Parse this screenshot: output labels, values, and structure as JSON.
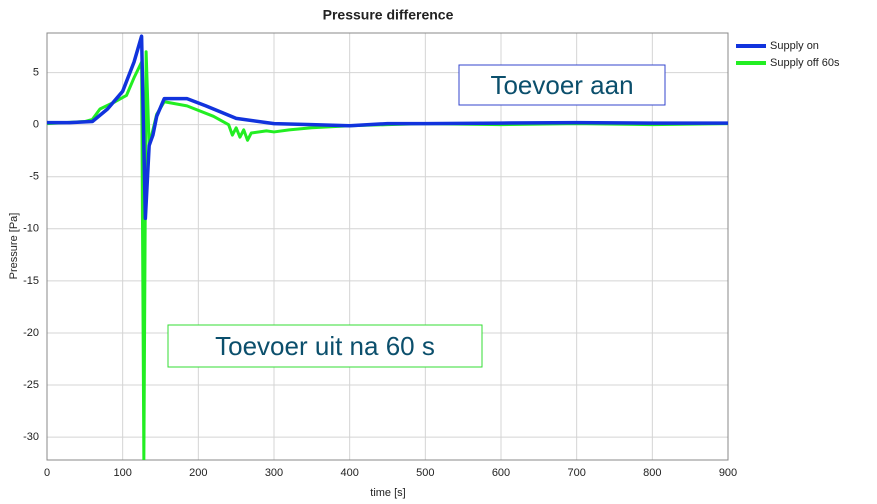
{
  "chart_data": {
    "type": "line",
    "title": "Pressure difference",
    "x_label": "time [s]",
    "y_label": "Pressure [Pa]",
    "xlim": [
      0,
      900
    ],
    "ylim": [
      -32.2,
      8.8
    ],
    "xticks": [
      0,
      100,
      200,
      300,
      400,
      500,
      600,
      700,
      800,
      900
    ],
    "yticks": [
      5,
      0,
      -5,
      -10,
      -15,
      -20,
      -25,
      -30
    ],
    "grid": true,
    "legend": "outside-top-right",
    "series": [
      {
        "name": "Supply on",
        "color": "#1133dd",
        "x": [
          0,
          30,
          60,
          80,
          100,
          115,
          125,
          130,
          135,
          140,
          145,
          155,
          185,
          210,
          250,
          300,
          350,
          400,
          450,
          500,
          600,
          700,
          800,
          900
        ],
        "values": [
          0.2,
          0.2,
          0.3,
          1.5,
          3.2,
          6,
          8.5,
          -9,
          -2,
          -1,
          0.8,
          2.5,
          2.5,
          1.8,
          0.6,
          0.1,
          0,
          -0.1,
          0.1,
          0.1,
          0.15,
          0.2,
          0.15,
          0.15
        ]
      },
      {
        "name": "Supply off 60s",
        "color": "#22ee22",
        "x": [
          0,
          50,
          60,
          70,
          90,
          105,
          115,
          125,
          128,
          131,
          135,
          145,
          155,
          185,
          220,
          240,
          245,
          250,
          255,
          260,
          265,
          270,
          290,
          300,
          320,
          350,
          400,
          450,
          500,
          600,
          700,
          800,
          900
        ],
        "values": [
          0.1,
          0.3,
          0.5,
          1.5,
          2.2,
          2.8,
          4.5,
          6,
          -32.2,
          7,
          -2,
          1,
          2.2,
          1.8,
          0.8,
          0,
          -1,
          -0.3,
          -1.2,
          -0.5,
          -1.5,
          -0.8,
          -0.6,
          -0.7,
          -0.5,
          -0.3,
          -0.1,
          0,
          0.1,
          0,
          0.1,
          0,
          0.1
        ]
      }
    ],
    "annotations": [
      {
        "text": "Toevoer aan"
      },
      {
        "text": "Toevoer uit na 60 s"
      }
    ]
  }
}
